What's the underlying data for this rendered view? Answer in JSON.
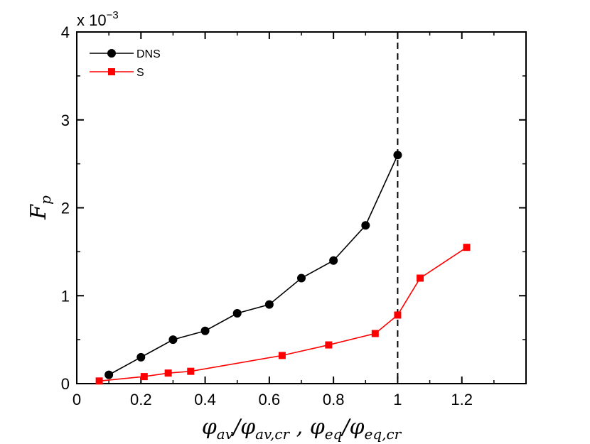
{
  "chart_data": {
    "type": "line",
    "title": "",
    "xlabel": "φav/φav,cr , φeq/φeq,cr",
    "xlabel_parts": {
      "phi_1": "φ",
      "sub_1": "av",
      "slash_1": "/",
      "phi_2": "φ",
      "sub_2": "av,cr",
      "comma": " , ",
      "phi_3": "φ",
      "sub_3": "eq",
      "slash_2": "/",
      "phi_4": "φ",
      "sub_4": "eq,cr"
    },
    "ylabel": "Fp",
    "ylabel_parts": {
      "main": "F",
      "sub": "p"
    },
    "y_scale_note": {
      "prefix": "x 10",
      "exponent": "−3"
    },
    "xlim": [
      0,
      1.4
    ],
    "ylim": [
      0,
      4
    ],
    "x_ticks": [
      0,
      0.2,
      0.4,
      0.6,
      0.8,
      1.0,
      1.2
    ],
    "x_tick_labels": [
      "0",
      "0.2",
      "0.4",
      "0.6",
      "0.8",
      "1",
      "1.2"
    ],
    "y_ticks": [
      0,
      1,
      2,
      3,
      4
    ],
    "y_tick_labels": [
      "0",
      "1",
      "2",
      "3",
      "4"
    ],
    "legend_position": "top-left",
    "reference_line": {
      "x": 1.0,
      "style": "dashed",
      "color": "#000000"
    },
    "series": [
      {
        "name": "DNS",
        "marker": "circle",
        "color": "#000000",
        "x": [
          0.1,
          0.2,
          0.3,
          0.4,
          0.5,
          0.6,
          0.7,
          0.8,
          0.9,
          1.0
        ],
        "y": [
          0.1,
          0.3,
          0.5,
          0.6,
          0.8,
          0.9,
          1.2,
          1.4,
          1.8,
          2.6
        ]
      },
      {
        "name": "S",
        "marker": "square",
        "color": "#ff0000",
        "x": [
          0.07,
          0.21,
          0.285,
          0.355,
          0.64,
          0.785,
          0.93,
          1.0,
          1.07,
          1.215
        ],
        "y": [
          0.03,
          0.08,
          0.12,
          0.14,
          0.32,
          0.44,
          0.57,
          0.78,
          1.2,
          1.55
        ]
      }
    ]
  }
}
